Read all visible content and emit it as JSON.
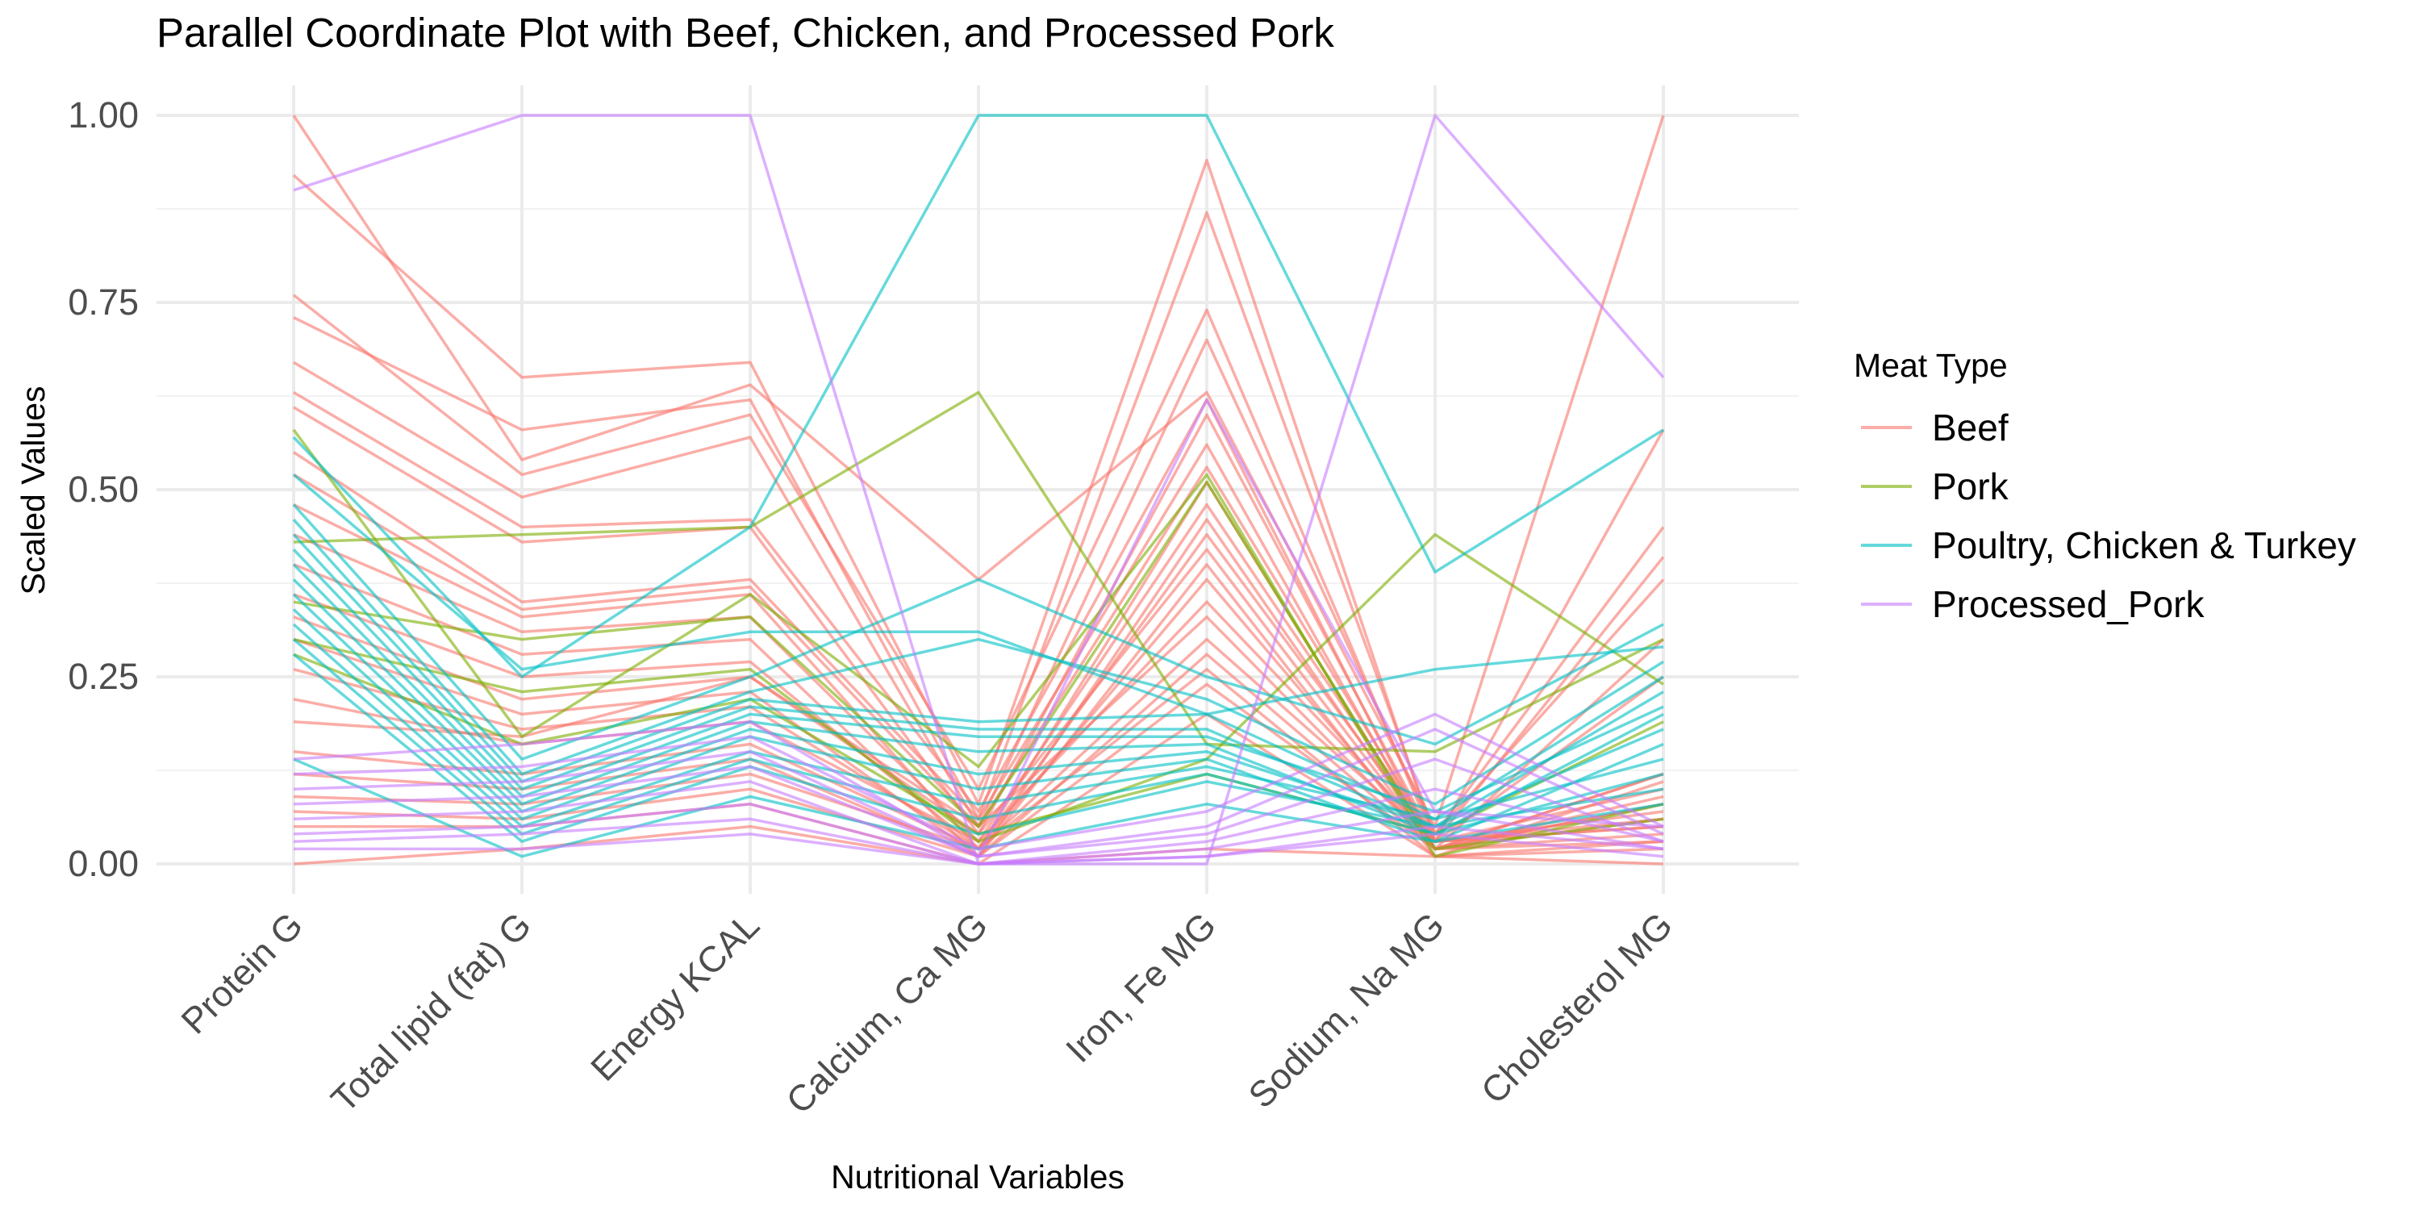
{
  "chart_data": {
    "type": "line",
    "title": "Parallel Coordinate Plot with Beef, Chicken, and Processed Pork",
    "xlabel": "Nutritional Variables",
    "ylabel": "Scaled Values",
    "ylim": [
      -0.04,
      1.04
    ],
    "grid": true,
    "legend_placement": "right",
    "x": [
      "Protein G",
      "Total lipid (fat) G",
      "Energy KCAL",
      "Calcium, Ca MG",
      "Iron, Fe MG",
      "Sodium, Na MG",
      "Cholesterol MG"
    ],
    "y_ticks": [
      "0.00",
      "0.25",
      "0.50",
      "0.75",
      "1.00"
    ],
    "legend": {
      "title": "Meat Type",
      "entries": [
        {
          "name": "Beef",
          "color": "#F8766D"
        },
        {
          "name": "Pork",
          "color": "#7CAE00"
        },
        {
          "name": "Poultry, Chicken & Turkey",
          "color": "#00BFC4"
        },
        {
          "name": "Processed_Pork",
          "color": "#C77CFF"
        }
      ]
    },
    "series": [
      {
        "group": "Beef",
        "color": "#F8766D",
        "values": [
          1.0,
          0.54,
          0.64,
          0.38,
          0.63,
          0.05,
          1.0
        ]
      },
      {
        "group": "Beef",
        "color": "#F8766D",
        "values": [
          0.92,
          0.65,
          0.67,
          0.08,
          0.94,
          0.03,
          0.58
        ]
      },
      {
        "group": "Beef",
        "color": "#F8766D",
        "values": [
          0.73,
          0.58,
          0.62,
          0.06,
          0.87,
          0.04,
          0.45
        ]
      },
      {
        "group": "Beef",
        "color": "#F8766D",
        "values": [
          0.76,
          0.52,
          0.6,
          0.1,
          0.74,
          0.03,
          0.41
        ]
      },
      {
        "group": "Beef",
        "color": "#F8766D",
        "values": [
          0.67,
          0.49,
          0.57,
          0.05,
          0.7,
          0.04,
          0.38
        ]
      },
      {
        "group": "Beef",
        "color": "#F8766D",
        "values": [
          0.63,
          0.45,
          0.46,
          0.07,
          0.62,
          0.02,
          0.3
        ]
      },
      {
        "group": "Beef",
        "color": "#F8766D",
        "values": [
          0.61,
          0.43,
          0.45,
          0.04,
          0.6,
          0.03,
          0.25
        ]
      },
      {
        "group": "Beef",
        "color": "#F8766D",
        "values": [
          0.55,
          0.35,
          0.38,
          0.06,
          0.56,
          0.02,
          0.12
        ]
      },
      {
        "group": "Beef",
        "color": "#F8766D",
        "values": [
          0.52,
          0.34,
          0.37,
          0.05,
          0.53,
          0.03,
          0.1
        ]
      },
      {
        "group": "Beef",
        "color": "#F8766D",
        "values": [
          0.48,
          0.33,
          0.36,
          0.02,
          0.51,
          0.02,
          0.08
        ]
      },
      {
        "group": "Beef",
        "color": "#F8766D",
        "values": [
          0.44,
          0.31,
          0.33,
          0.03,
          0.48,
          0.03,
          0.07
        ]
      },
      {
        "group": "Beef",
        "color": "#F8766D",
        "values": [
          0.4,
          0.28,
          0.3,
          0.01,
          0.46,
          0.02,
          0.06
        ]
      },
      {
        "group": "Beef",
        "color": "#F8766D",
        "values": [
          0.36,
          0.25,
          0.27,
          0.02,
          0.44,
          0.03,
          0.05
        ]
      },
      {
        "group": "Beef",
        "color": "#F8766D",
        "values": [
          0.33,
          0.22,
          0.25,
          0.04,
          0.42,
          0.02,
          0.09
        ]
      },
      {
        "group": "Beef",
        "color": "#F8766D",
        "values": [
          0.3,
          0.2,
          0.23,
          0.01,
          0.4,
          0.01,
          0.11
        ]
      },
      {
        "group": "Beef",
        "color": "#F8766D",
        "values": [
          0.26,
          0.18,
          0.21,
          0.02,
          0.38,
          0.02,
          0.08
        ]
      },
      {
        "group": "Beef",
        "color": "#F8766D",
        "values": [
          0.22,
          0.16,
          0.19,
          0.03,
          0.35,
          0.03,
          0.06
        ]
      },
      {
        "group": "Beef",
        "color": "#F8766D",
        "values": [
          0.19,
          0.17,
          0.25,
          0.05,
          0.33,
          0.02,
          0.12
        ]
      },
      {
        "group": "Beef",
        "color": "#F8766D",
        "values": [
          0.15,
          0.12,
          0.16,
          0.02,
          0.3,
          0.03,
          0.05
        ]
      },
      {
        "group": "Beef",
        "color": "#F8766D",
        "values": [
          0.12,
          0.1,
          0.14,
          0.01,
          0.28,
          0.02,
          0.04
        ]
      },
      {
        "group": "Beef",
        "color": "#F8766D",
        "values": [
          0.09,
          0.08,
          0.12,
          0.02,
          0.26,
          0.01,
          0.03
        ]
      },
      {
        "group": "Beef",
        "color": "#F8766D",
        "values": [
          0.07,
          0.06,
          0.1,
          0.01,
          0.24,
          0.02,
          0.03
        ]
      },
      {
        "group": "Beef",
        "color": "#F8766D",
        "values": [
          0.05,
          0.05,
          0.08,
          0.0,
          0.2,
          0.01,
          0.02
        ]
      },
      {
        "group": "Beef",
        "color": "#F8766D",
        "values": [
          0.0,
          0.02,
          0.05,
          0.0,
          0.02,
          0.01,
          0.0
        ]
      },
      {
        "group": "Pork",
        "color": "#7CAE00",
        "values": [
          0.43,
          0.44,
          0.45,
          0.63,
          0.16,
          0.15,
          0.3
        ]
      },
      {
        "group": "Pork",
        "color": "#7CAE00",
        "values": [
          0.58,
          0.17,
          0.36,
          0.13,
          0.52,
          0.01,
          0.08
        ]
      },
      {
        "group": "Pork",
        "color": "#7CAE00",
        "values": [
          0.35,
          0.3,
          0.33,
          0.05,
          0.51,
          0.02,
          0.06
        ]
      },
      {
        "group": "Pork",
        "color": "#7CAE00",
        "values": [
          0.3,
          0.23,
          0.26,
          0.03,
          0.14,
          0.44,
          0.24
        ]
      },
      {
        "group": "Pork",
        "color": "#7CAE00",
        "values": [
          0.28,
          0.16,
          0.22,
          0.04,
          0.12,
          0.04,
          0.19
        ]
      },
      {
        "group": "Poultry, Chicken & Turkey",
        "color": "#00BFC4",
        "values": [
          0.57,
          0.25,
          0.45,
          1.0,
          1.0,
          0.39,
          0.58
        ]
      },
      {
        "group": "Poultry, Chicken & Turkey",
        "color": "#00BFC4",
        "values": [
          0.52,
          0.26,
          0.31,
          0.31,
          0.2,
          0.26,
          0.29
        ]
      },
      {
        "group": "Poultry, Chicken & Turkey",
        "color": "#00BFC4",
        "values": [
          0.48,
          0.14,
          0.25,
          0.38,
          0.25,
          0.16,
          0.32
        ]
      },
      {
        "group": "Poultry, Chicken & Turkey",
        "color": "#00BFC4",
        "values": [
          0.46,
          0.12,
          0.23,
          0.3,
          0.22,
          0.08,
          0.27
        ]
      },
      {
        "group": "Poultry, Chicken & Turkey",
        "color": "#00BFC4",
        "values": [
          0.44,
          0.11,
          0.22,
          0.19,
          0.2,
          0.06,
          0.25
        ]
      },
      {
        "group": "Poultry, Chicken & Turkey",
        "color": "#00BFC4",
        "values": [
          0.42,
          0.1,
          0.21,
          0.18,
          0.18,
          0.05,
          0.23
        ]
      },
      {
        "group": "Poultry, Chicken & Turkey",
        "color": "#00BFC4",
        "values": [
          0.4,
          0.09,
          0.2,
          0.17,
          0.17,
          0.07,
          0.21
        ]
      },
      {
        "group": "Poultry, Chicken & Turkey",
        "color": "#00BFC4",
        "values": [
          0.38,
          0.08,
          0.19,
          0.15,
          0.16,
          0.04,
          0.2
        ]
      },
      {
        "group": "Poultry, Chicken & Turkey",
        "color": "#00BFC4",
        "values": [
          0.36,
          0.07,
          0.18,
          0.12,
          0.15,
          0.05,
          0.18
        ]
      },
      {
        "group": "Poultry, Chicken & Turkey",
        "color": "#00BFC4",
        "values": [
          0.34,
          0.06,
          0.17,
          0.1,
          0.14,
          0.03,
          0.16
        ]
      },
      {
        "group": "Poultry, Chicken & Turkey",
        "color": "#00BFC4",
        "values": [
          0.32,
          0.05,
          0.15,
          0.08,
          0.13,
          0.06,
          0.14
        ]
      },
      {
        "group": "Poultry, Chicken & Turkey",
        "color": "#00BFC4",
        "values": [
          0.3,
          0.04,
          0.14,
          0.06,
          0.12,
          0.04,
          0.12
        ]
      },
      {
        "group": "Poultry, Chicken & Turkey",
        "color": "#00BFC4",
        "values": [
          0.28,
          0.03,
          0.13,
          0.04,
          0.11,
          0.05,
          0.1
        ]
      },
      {
        "group": "Poultry, Chicken & Turkey",
        "color": "#00BFC4",
        "values": [
          0.14,
          0.01,
          0.09,
          0.02,
          0.08,
          0.03,
          0.08
        ]
      },
      {
        "group": "Processed_Pork",
        "color": "#C77CFF",
        "values": [
          0.9,
          1.0,
          1.0,
          0.0,
          0.0,
          1.0,
          0.65
        ]
      },
      {
        "group": "Processed_Pork",
        "color": "#C77CFF",
        "values": [
          0.14,
          0.16,
          0.19,
          0.01,
          0.62,
          0.07,
          0.05
        ]
      },
      {
        "group": "Processed_Pork",
        "color": "#C77CFF",
        "values": [
          0.12,
          0.13,
          0.17,
          0.02,
          0.07,
          0.2,
          0.05
        ]
      },
      {
        "group": "Processed_Pork",
        "color": "#C77CFF",
        "values": [
          0.1,
          0.11,
          0.15,
          0.01,
          0.05,
          0.18,
          0.04
        ]
      },
      {
        "group": "Processed_Pork",
        "color": "#C77CFF",
        "values": [
          0.08,
          0.09,
          0.13,
          0.01,
          0.04,
          0.14,
          0.03
        ]
      },
      {
        "group": "Processed_Pork",
        "color": "#C77CFF",
        "values": [
          0.06,
          0.07,
          0.11,
          0.0,
          0.03,
          0.1,
          0.03
        ]
      },
      {
        "group": "Processed_Pork",
        "color": "#C77CFF",
        "values": [
          0.04,
          0.05,
          0.08,
          0.0,
          0.02,
          0.07,
          0.02
        ]
      },
      {
        "group": "Processed_Pork",
        "color": "#C77CFF",
        "values": [
          0.03,
          0.04,
          0.06,
          0.0,
          0.01,
          0.05,
          0.02
        ]
      },
      {
        "group": "Processed_Pork",
        "color": "#C77CFF",
        "values": [
          0.02,
          0.02,
          0.04,
          0.0,
          0.01,
          0.04,
          0.01
        ]
      }
    ]
  }
}
